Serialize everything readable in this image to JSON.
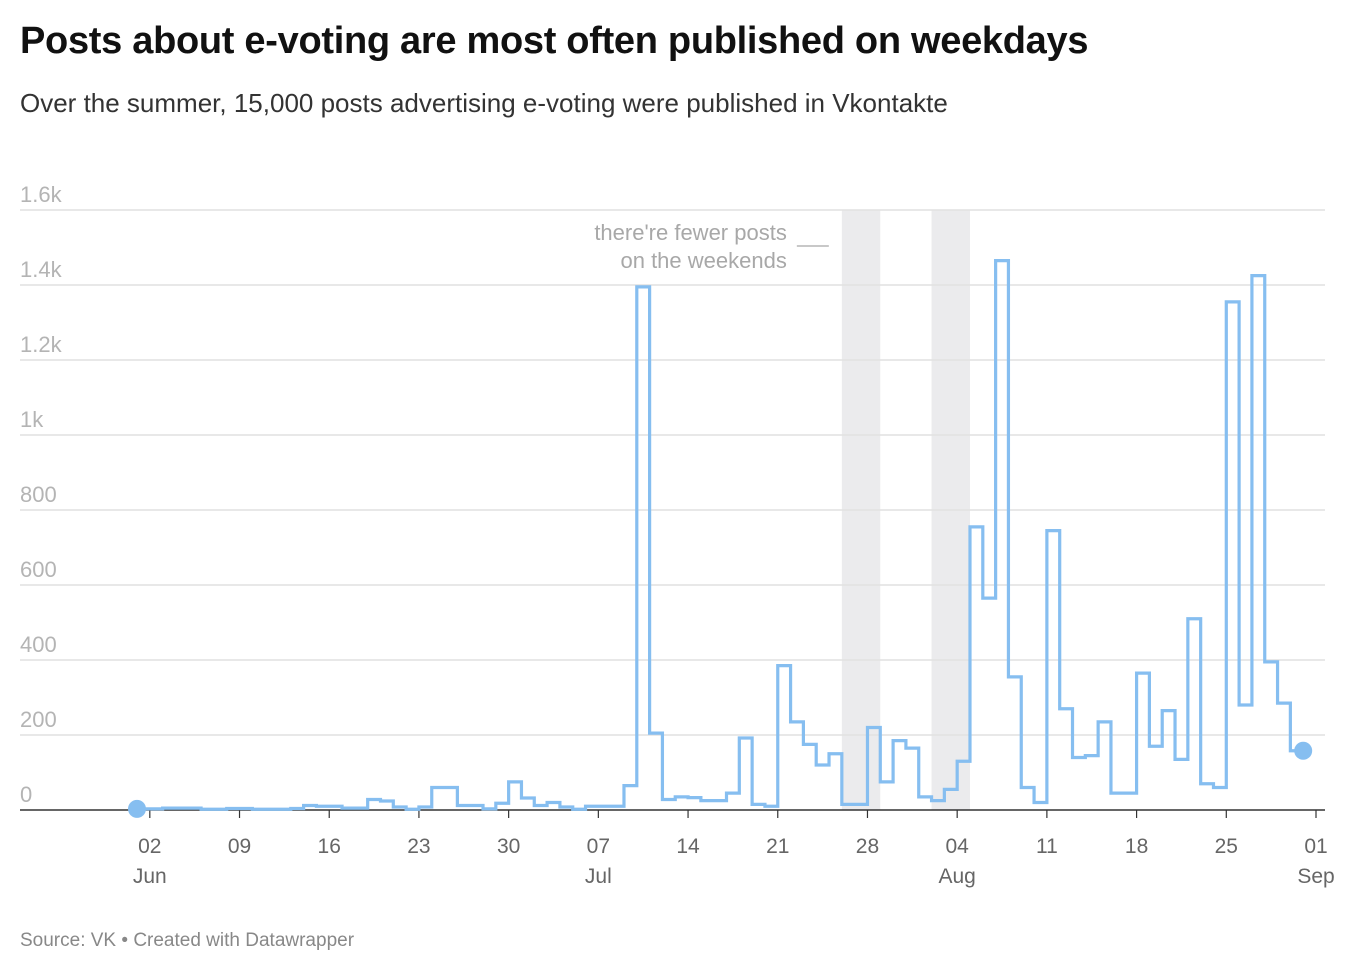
{
  "title": "Posts about e-voting are most often published on weekdays",
  "subtitle": "Over the summer, 15,000 posts advertising e-voting were published in Vkontakte",
  "source": "Source: VK • Created with Datawrapper",
  "colors": {
    "line": "#86bef0",
    "weekend_band": "#ebebed",
    "grid": "#e1e1e1"
  },
  "chart_data": {
    "type": "line",
    "step": true,
    "grid": true,
    "ylim": [
      0,
      1600
    ],
    "y_ticks": [
      {
        "value": 0,
        "label": "0"
      },
      {
        "value": 200,
        "label": "200"
      },
      {
        "value": 400,
        "label": "400"
      },
      {
        "value": 600,
        "label": "600"
      },
      {
        "value": 800,
        "label": "800"
      },
      {
        "value": 1000,
        "label": "1k"
      },
      {
        "value": 1200,
        "label": "1.2k"
      },
      {
        "value": 1400,
        "label": "1.4k"
      },
      {
        "value": 1600,
        "label": "1.6k"
      }
    ],
    "xlim": [
      "2020-06-01",
      "2020-09-01"
    ],
    "x_ticks": [
      {
        "date": "2020-06-02",
        "label": "02",
        "month": "Jun"
      },
      {
        "date": "2020-06-09",
        "label": "09",
        "month": ""
      },
      {
        "date": "2020-06-16",
        "label": "16",
        "month": ""
      },
      {
        "date": "2020-06-23",
        "label": "23",
        "month": ""
      },
      {
        "date": "2020-06-30",
        "label": "30",
        "month": ""
      },
      {
        "date": "2020-07-07",
        "label": "07",
        "month": "Jul"
      },
      {
        "date": "2020-07-14",
        "label": "14",
        "month": ""
      },
      {
        "date": "2020-07-21",
        "label": "21",
        "month": ""
      },
      {
        "date": "2020-07-28",
        "label": "28",
        "month": ""
      },
      {
        "date": "2020-08-04",
        "label": "04",
        "month": "Aug"
      },
      {
        "date": "2020-08-11",
        "label": "11",
        "month": ""
      },
      {
        "date": "2020-08-18",
        "label": "18",
        "month": ""
      },
      {
        "date": "2020-08-25",
        "label": "25",
        "month": ""
      },
      {
        "date": "2020-09-01",
        "label": "01",
        "month": "Sep"
      }
    ],
    "weekend_bands": [
      {
        "start": "2020-07-26",
        "end": "2020-07-29"
      },
      {
        "start": "2020-08-02",
        "end": "2020-08-05"
      }
    ],
    "annotation": {
      "lines": [
        "there're fewer posts",
        "on the weekends"
      ]
    },
    "start_marker": {
      "date": "2020-06-01",
      "value": 3
    },
    "end_marker": {
      "date": "2020-08-31",
      "value": 158
    },
    "series": [
      {
        "points": [
          {
            "date": "2020-06-01",
            "value": 3
          },
          {
            "date": "2020-06-03",
            "value": 5
          },
          {
            "date": "2020-06-06",
            "value": 2
          },
          {
            "date": "2020-06-08",
            "value": 4
          },
          {
            "date": "2020-06-10",
            "value": 2
          },
          {
            "date": "2020-06-13",
            "value": 4
          },
          {
            "date": "2020-06-14",
            "value": 12
          },
          {
            "date": "2020-06-15",
            "value": 10
          },
          {
            "date": "2020-06-17",
            "value": 5
          },
          {
            "date": "2020-06-19",
            "value": 28
          },
          {
            "date": "2020-06-20",
            "value": 24
          },
          {
            "date": "2020-06-21",
            "value": 8
          },
          {
            "date": "2020-06-22",
            "value": 2
          },
          {
            "date": "2020-06-23",
            "value": 8
          },
          {
            "date": "2020-06-24",
            "value": 60
          },
          {
            "date": "2020-06-26",
            "value": 12
          },
          {
            "date": "2020-06-28",
            "value": 3
          },
          {
            "date": "2020-06-29",
            "value": 18
          },
          {
            "date": "2020-06-30",
            "value": 75
          },
          {
            "date": "2020-07-01",
            "value": 32
          },
          {
            "date": "2020-07-02",
            "value": 12
          },
          {
            "date": "2020-07-03",
            "value": 20
          },
          {
            "date": "2020-07-04",
            "value": 8
          },
          {
            "date": "2020-07-05",
            "value": 2
          },
          {
            "date": "2020-07-06",
            "value": 10
          },
          {
            "date": "2020-07-09",
            "value": 65
          },
          {
            "date": "2020-07-10",
            "value": 1395
          },
          {
            "date": "2020-07-11",
            "value": 205
          },
          {
            "date": "2020-07-12",
            "value": 28
          },
          {
            "date": "2020-07-13",
            "value": 35
          },
          {
            "date": "2020-07-14",
            "value": 33
          },
          {
            "date": "2020-07-15",
            "value": 25
          },
          {
            "date": "2020-07-17",
            "value": 45
          },
          {
            "date": "2020-07-18",
            "value": 192
          },
          {
            "date": "2020-07-19",
            "value": 15
          },
          {
            "date": "2020-07-20",
            "value": 10
          },
          {
            "date": "2020-07-21",
            "value": 385
          },
          {
            "date": "2020-07-22",
            "value": 235
          },
          {
            "date": "2020-07-23",
            "value": 175
          },
          {
            "date": "2020-07-24",
            "value": 120
          },
          {
            "date": "2020-07-25",
            "value": 150
          },
          {
            "date": "2020-07-26",
            "value": 15
          },
          {
            "date": "2020-07-27",
            "value": 15
          },
          {
            "date": "2020-07-28",
            "value": 220
          },
          {
            "date": "2020-07-29",
            "value": 75
          },
          {
            "date": "2020-07-30",
            "value": 185
          },
          {
            "date": "2020-07-31",
            "value": 165
          },
          {
            "date": "2020-08-01",
            "value": 35
          },
          {
            "date": "2020-08-02",
            "value": 25
          },
          {
            "date": "2020-08-03",
            "value": 55
          },
          {
            "date": "2020-08-04",
            "value": 130
          },
          {
            "date": "2020-08-05",
            "value": 755
          },
          {
            "date": "2020-08-06",
            "value": 565
          },
          {
            "date": "2020-08-07",
            "value": 1465
          },
          {
            "date": "2020-08-08",
            "value": 355
          },
          {
            "date": "2020-08-09",
            "value": 60
          },
          {
            "date": "2020-08-10",
            "value": 20
          },
          {
            "date": "2020-08-11",
            "value": 745
          },
          {
            "date": "2020-08-12",
            "value": 270
          },
          {
            "date": "2020-08-13",
            "value": 140
          },
          {
            "date": "2020-08-14",
            "value": 145
          },
          {
            "date": "2020-08-15",
            "value": 235
          },
          {
            "date": "2020-08-16",
            "value": 45
          },
          {
            "date": "2020-08-17",
            "value": 45
          },
          {
            "date": "2020-08-18",
            "value": 365
          },
          {
            "date": "2020-08-19",
            "value": 170
          },
          {
            "date": "2020-08-20",
            "value": 265
          },
          {
            "date": "2020-08-21",
            "value": 135
          },
          {
            "date": "2020-08-22",
            "value": 510
          },
          {
            "date": "2020-08-23",
            "value": 70
          },
          {
            "date": "2020-08-24",
            "value": 60
          },
          {
            "date": "2020-08-25",
            "value": 1355
          },
          {
            "date": "2020-08-26",
            "value": 280
          },
          {
            "date": "2020-08-27",
            "value": 1425
          },
          {
            "date": "2020-08-28",
            "value": 395
          },
          {
            "date": "2020-08-29",
            "value": 285
          },
          {
            "date": "2020-08-30",
            "value": 158
          }
        ]
      }
    ]
  }
}
